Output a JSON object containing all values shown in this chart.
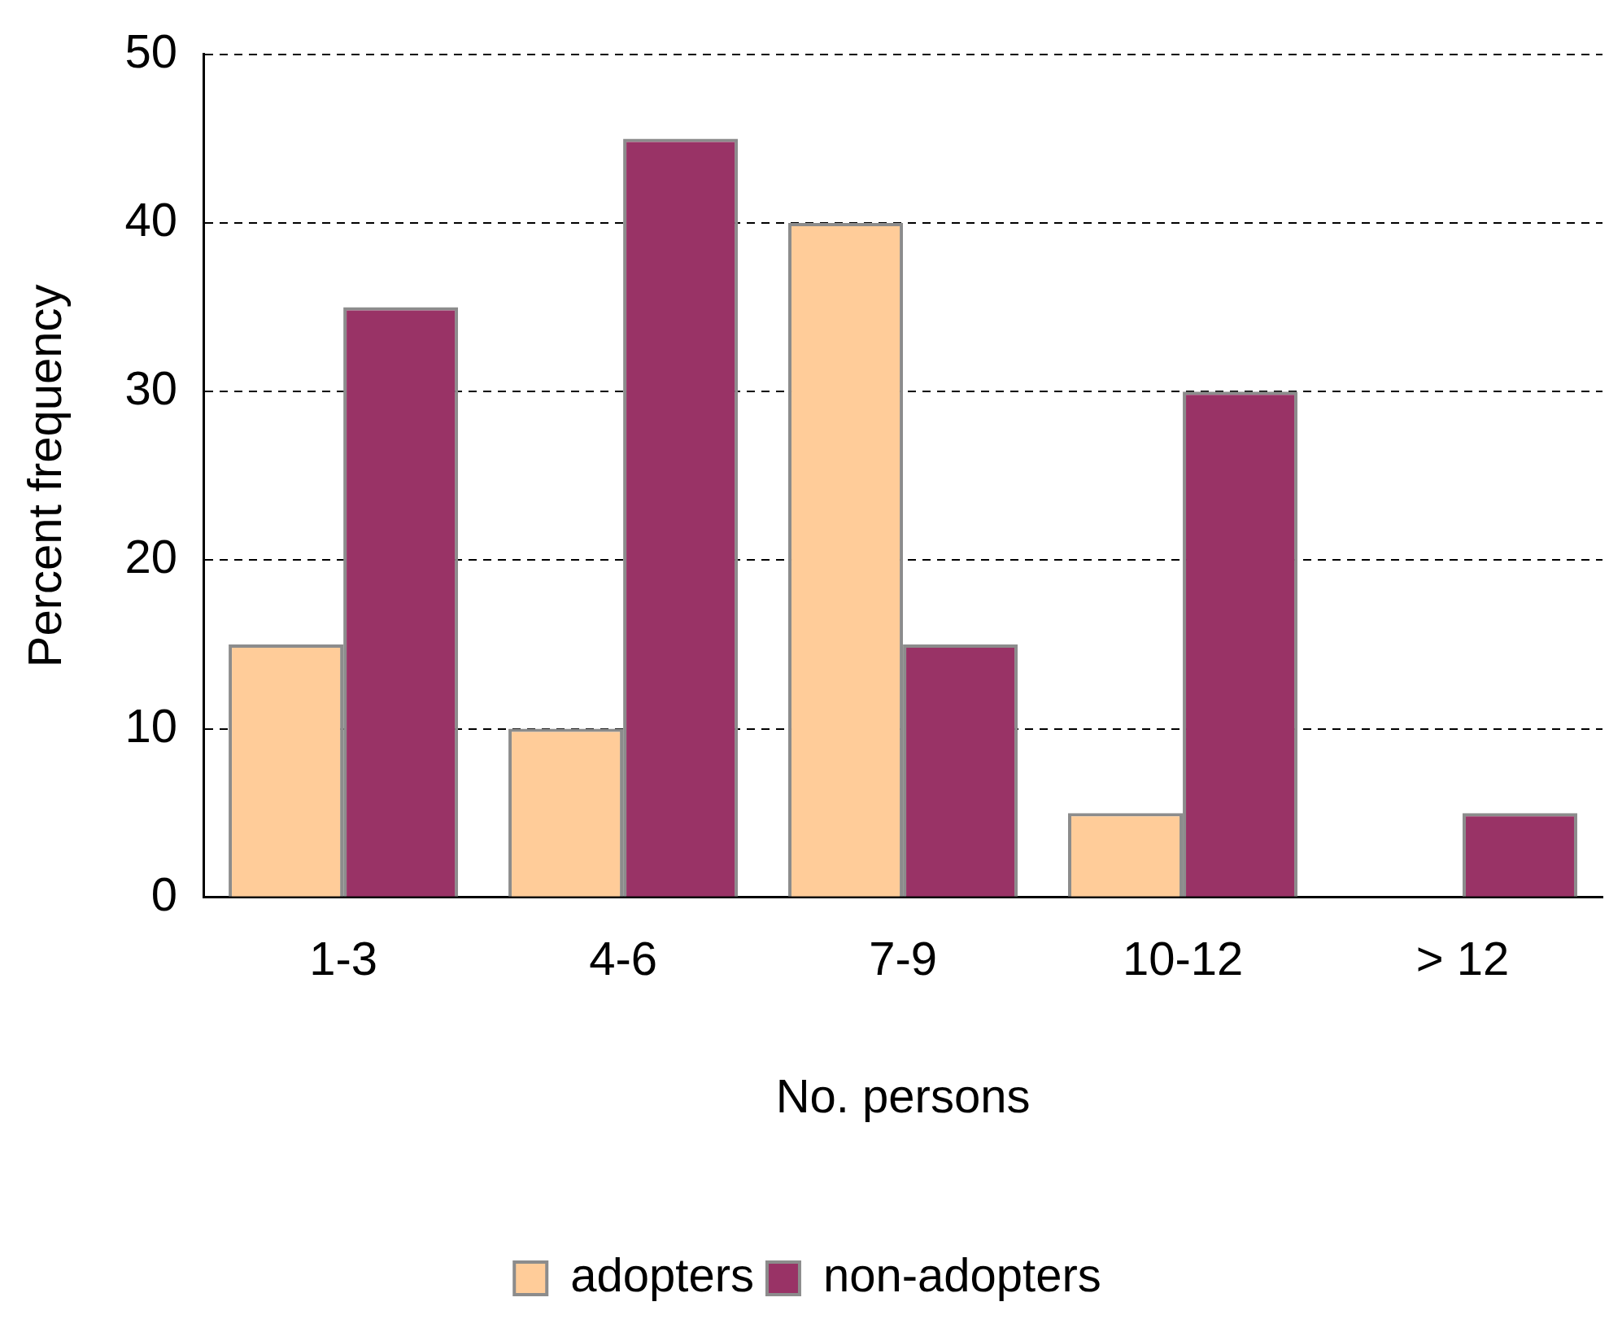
{
  "chart_data": {
    "type": "bar",
    "xlabel": "No. persons",
    "ylabel": "Percent frequency",
    "categories": [
      "1-3",
      "4-6",
      "7-9",
      "10-12",
      "> 12"
    ],
    "series": [
      {
        "name": "adopters",
        "color": "#ffcc99",
        "values": [
          15,
          10,
          40,
          5,
          0
        ]
      },
      {
        "name": "non-adopters",
        "color": "#993366",
        "values": [
          35,
          45,
          15,
          30,
          5
        ]
      }
    ],
    "ylim": [
      0,
      50
    ],
    "yticks": [
      0,
      10,
      20,
      30,
      40,
      50
    ],
    "grid": "y",
    "legend": "bottom"
  }
}
